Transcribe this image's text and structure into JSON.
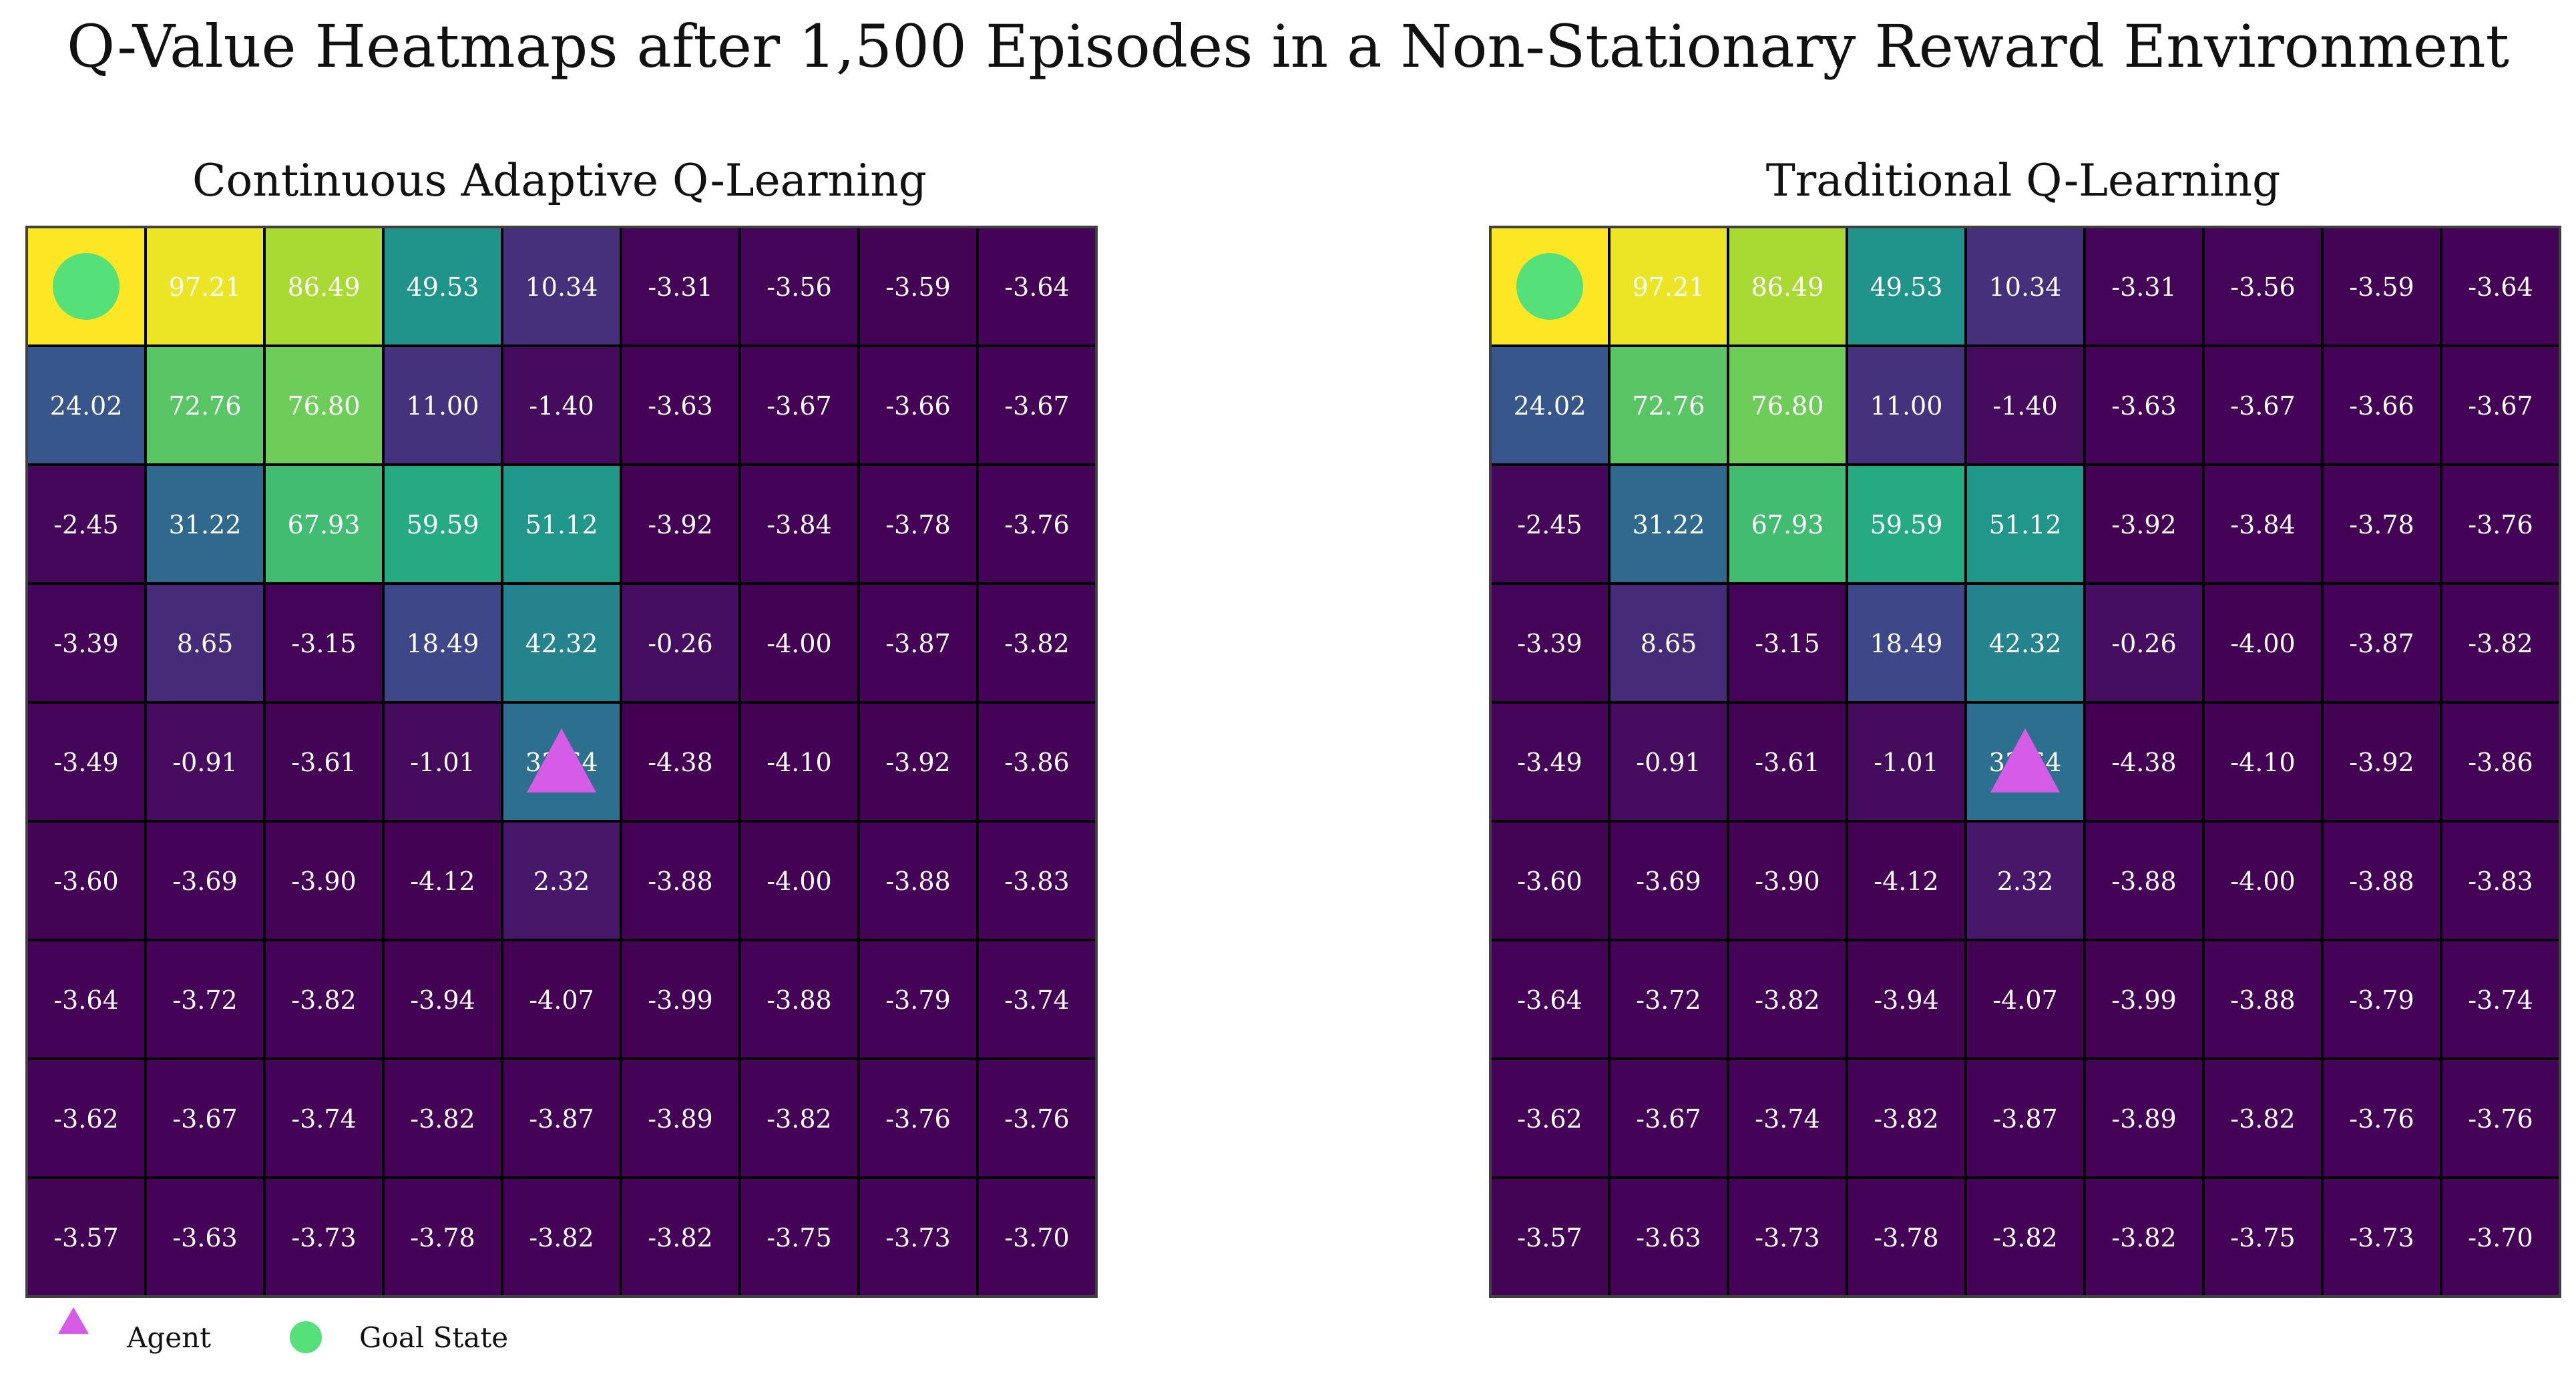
{
  "title": "Q-Value Heatmaps after 1,500 Episodes in a Non-Stationary Reward Environment",
  "chart_data": [
    {
      "type": "heatmap",
      "title": "Continuous Adaptive Q-Learning",
      "colormap": "viridis",
      "grid_size": [
        9,
        9
      ],
      "values": [
        [
          "",
          "97.21",
          "86.49",
          "49.53",
          "10.34",
          "-3.31",
          "-3.56",
          "-3.59",
          "-3.64"
        ],
        [
          "24.02",
          "72.76",
          "76.80",
          "11.00",
          "-1.40",
          "-3.63",
          "-3.67",
          "-3.66",
          "-3.67"
        ],
        [
          "-2.45",
          "31.22",
          "67.93",
          "59.59",
          "51.12",
          "-3.92",
          "-3.84",
          "-3.78",
          "-3.76"
        ],
        [
          "-3.39",
          "8.65",
          "-3.15",
          "18.49",
          "42.32",
          "-0.26",
          "-4.00",
          "-3.87",
          "-3.82"
        ],
        [
          "-3.49",
          "-0.91",
          "-3.61",
          "-1.01",
          "33.64",
          "-4.38",
          "-4.10",
          "-3.92",
          "-3.86"
        ],
        [
          "-3.60",
          "-3.69",
          "-3.90",
          "-4.12",
          "2.32",
          "-3.88",
          "-4.00",
          "-3.88",
          "-3.83"
        ],
        [
          "-3.64",
          "-3.72",
          "-3.82",
          "-3.94",
          "-4.07",
          "-3.99",
          "-3.88",
          "-3.79",
          "-3.74"
        ],
        [
          "-3.62",
          "-3.67",
          "-3.74",
          "-3.82",
          "-3.87",
          "-3.89",
          "-3.82",
          "-3.76",
          "-3.76"
        ],
        [
          "-3.57",
          "-3.63",
          "-3.73",
          "-3.78",
          "-3.82",
          "-3.82",
          "-3.75",
          "-3.73",
          "-3.70"
        ]
      ],
      "goal_state": [
        0,
        0
      ],
      "agent": [
        4,
        4
      ],
      "value_range": [
        -4.38,
        100
      ]
    },
    {
      "type": "heatmap",
      "title": "Traditional Q-Learning",
      "colormap": "viridis",
      "grid_size": [
        9,
        9
      ],
      "values": [
        [
          "",
          "97.21",
          "86.49",
          "49.53",
          "10.34",
          "-3.31",
          "-3.56",
          "-3.59",
          "-3.64"
        ],
        [
          "24.02",
          "72.76",
          "76.80",
          "11.00",
          "-1.40",
          "-3.63",
          "-3.67",
          "-3.66",
          "-3.67"
        ],
        [
          "-2.45",
          "31.22",
          "67.93",
          "59.59",
          "51.12",
          "-3.92",
          "-3.84",
          "-3.78",
          "-3.76"
        ],
        [
          "-3.39",
          "8.65",
          "-3.15",
          "18.49",
          "42.32",
          "-0.26",
          "-4.00",
          "-3.87",
          "-3.82"
        ],
        [
          "-3.49",
          "-0.91",
          "-3.61",
          "-1.01",
          "33.64",
          "-4.38",
          "-4.10",
          "-3.92",
          "-3.86"
        ],
        [
          "-3.60",
          "-3.69",
          "-3.90",
          "-4.12",
          "2.32",
          "-3.88",
          "-4.00",
          "-3.88",
          "-3.83"
        ],
        [
          "-3.64",
          "-3.72",
          "-3.82",
          "-3.94",
          "-4.07",
          "-3.99",
          "-3.88",
          "-3.79",
          "-3.74"
        ],
        [
          "-3.62",
          "-3.67",
          "-3.74",
          "-3.82",
          "-3.87",
          "-3.89",
          "-3.82",
          "-3.76",
          "-3.76"
        ],
        [
          "-3.57",
          "-3.63",
          "-3.73",
          "-3.78",
          "-3.82",
          "-3.82",
          "-3.75",
          "-3.73",
          "-3.70"
        ]
      ],
      "goal_state": [
        0,
        0
      ],
      "agent": [
        4,
        4
      ],
      "value_range": [
        -4.38,
        100
      ]
    }
  ],
  "legend": {
    "placement": "bottom-left",
    "items": [
      {
        "label": "Agent",
        "marker": "triangle",
        "color": "#d65ce8"
      },
      {
        "label": "Goal State",
        "marker": "circle",
        "color": "#55e07a"
      }
    ]
  },
  "colors": {
    "cell_border": "#000000",
    "frame": "#404040",
    "cell_text": "#ffffff",
    "agent": "#d65ce8",
    "goal": "#55e07a"
  }
}
